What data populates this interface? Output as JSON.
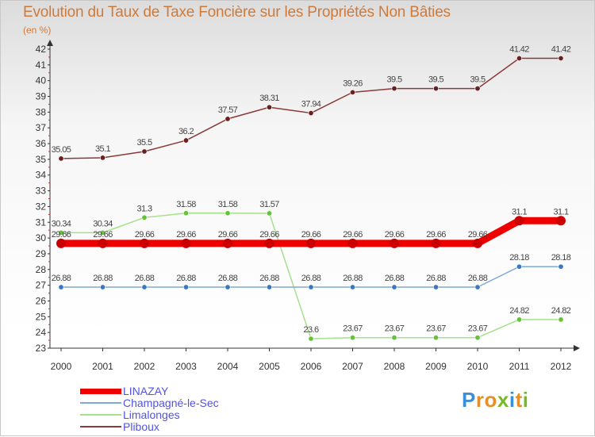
{
  "title": "Evolution du Taux de Taxe Foncière sur les Propriétés Non Bâties",
  "subtitle": "(en %)",
  "logo": {
    "text": "Proxiti",
    "letters": [
      {
        "ch": "P",
        "color": "#3a8fd6"
      },
      {
        "ch": "r",
        "color": "#e58f2c"
      },
      {
        "ch": "o",
        "color": "#e58f2c"
      },
      {
        "ch": "x",
        "color": "#77b828"
      },
      {
        "ch": "i",
        "color": "#3a8fd6"
      },
      {
        "ch": "t",
        "color": "#e58f2c"
      },
      {
        "ch": "i",
        "color": "#77b828"
      }
    ]
  },
  "chart_data": {
    "type": "line",
    "title": "Evolution du Taux de Taxe Foncière sur les Propriétés Non Bâties",
    "ylabel": "(en %)",
    "xlabel": "",
    "ylim": [
      23,
      42
    ],
    "yticks": [
      "23",
      "24",
      "25",
      "26",
      "27",
      "28",
      "29",
      "30",
      "31",
      "32",
      "33",
      "34",
      "35",
      "36",
      "37",
      "38",
      "39",
      "40",
      "41",
      "42"
    ],
    "categories": [
      "2000",
      "2001",
      "2002",
      "2003",
      "2004",
      "2005",
      "2006",
      "2007",
      "2008",
      "2009",
      "2010",
      "2011",
      "2012"
    ],
    "grid": false,
    "legend_position": "bottom-left",
    "series": [
      {
        "name": "LINAZAY",
        "color": "#ee0000",
        "marker_color": "#cc0000",
        "width": 9,
        "values": [
          29.66,
          29.66,
          29.66,
          29.66,
          29.66,
          29.66,
          29.66,
          29.66,
          29.66,
          29.66,
          29.66,
          31.1,
          31.1
        ],
        "labels": [
          "29.66",
          "29.66",
          "29.66",
          "29.66",
          "29.66",
          "29.66",
          "29.66",
          "29.66",
          "29.66",
          "29.66",
          "29.66",
          "31.1",
          "31.1"
        ]
      },
      {
        "name": "Champagné-le-Sec",
        "color": "#7fa9d6",
        "marker_color": "#3a78c0",
        "width": 1.5,
        "values": [
          26.88,
          26.88,
          26.88,
          26.88,
          26.88,
          26.88,
          26.88,
          26.88,
          26.88,
          26.88,
          26.88,
          28.18,
          28.18
        ],
        "labels": [
          "26.88",
          "26.88",
          "26.88",
          "26.88",
          "26.88",
          "26.88",
          "26.88",
          "26.88",
          "26.88",
          "26.88",
          "26.88",
          "28.18",
          "28.18"
        ]
      },
      {
        "name": "Limalonges",
        "color": "#a5e08a",
        "marker_color": "#66c23a",
        "width": 1.5,
        "values": [
          30.34,
          30.34,
          31.3,
          31.58,
          31.58,
          31.57,
          23.6,
          23.67,
          23.67,
          23.67,
          23.67,
          24.82,
          24.82
        ],
        "labels": [
          "30.34",
          "30.34",
          "31.3",
          "31.58",
          "31.58",
          "31.57",
          "23.6",
          "23.67",
          "23.67",
          "23.67",
          "23.67",
          "24.82",
          "24.82"
        ]
      },
      {
        "name": "Pliboux",
        "color": "#8a3a3a",
        "marker_color": "#6b1f1f",
        "width": 1.5,
        "values": [
          35.05,
          35.1,
          35.5,
          36.2,
          37.57,
          38.31,
          37.94,
          39.26,
          39.5,
          39.5,
          39.5,
          41.42,
          41.42
        ],
        "labels": [
          "35.05",
          "35.1",
          "35.5",
          "36.2",
          "37.57",
          "38.31",
          "37.94",
          "39.26",
          "39.5",
          "39.5",
          "39.5",
          "41.42",
          "41.42"
        ]
      }
    ]
  }
}
